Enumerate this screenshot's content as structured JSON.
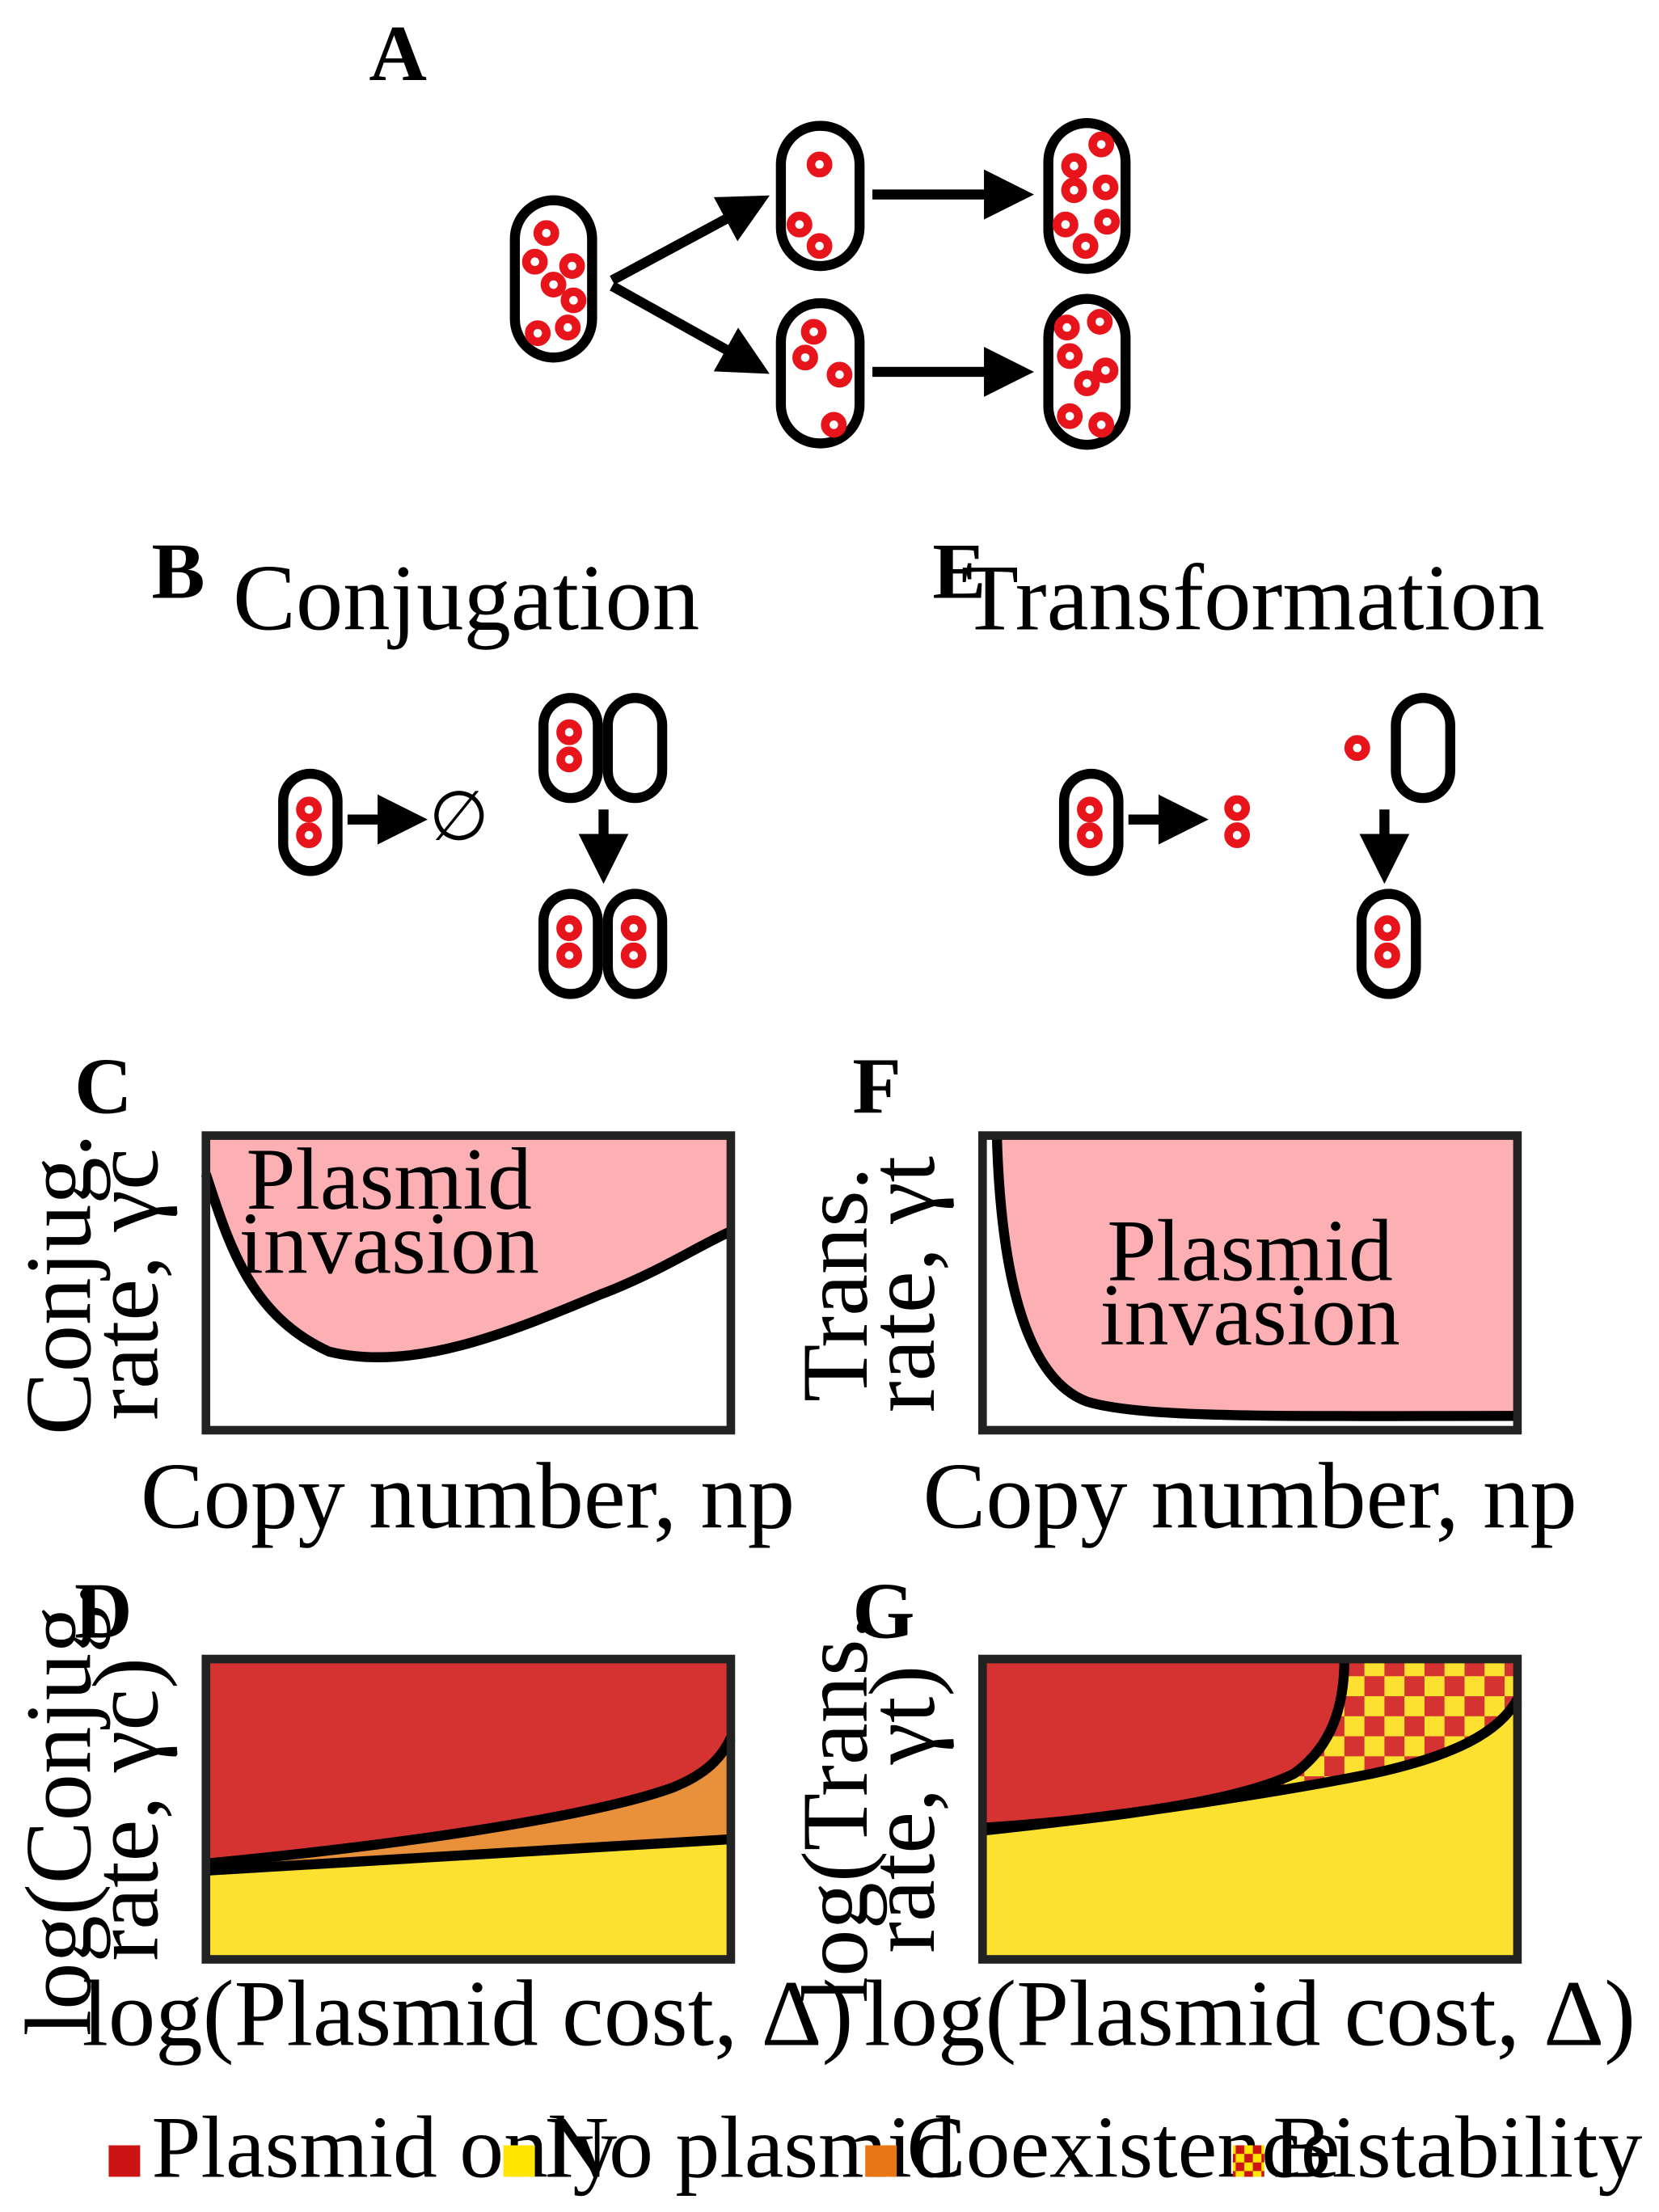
{
  "panels": {
    "A": {
      "letter": "A"
    },
    "B": {
      "letter": "B",
      "title": "Conjugation",
      "empty_set": "∅"
    },
    "E": {
      "letter": "E",
      "title": "Transformation"
    },
    "C": {
      "letter": "C",
      "ylabel_line1": "Conjug.",
      "ylabel_line2": "rate, γc",
      "xlabel": "Copy number, np",
      "region_line1": "Plasmid",
      "region_line2": "invasion"
    },
    "F": {
      "letter": "F",
      "ylabel_line1": "Trans.",
      "ylabel_line2": "rate, γt",
      "xlabel": "Copy number, np",
      "region_line1": "Plasmid",
      "region_line2": "invasion"
    },
    "D": {
      "letter": "D",
      "ylabel_line1": "log(Conjug.",
      "ylabel_line2": "rate, γc)",
      "xlabel": "log(Plasmid cost, Δ)"
    },
    "G": {
      "letter": "G",
      "ylabel_line1": "log(Trans.",
      "ylabel_line2": "rate, γt)",
      "xlabel": "log(Plasmid cost, Δ)"
    }
  },
  "colors": {
    "plasmid_only": "#d53332",
    "no_plasmid": "#fde130",
    "coexistence": "#e8913a",
    "invasion": "#fdb0b4",
    "plasmid_ring": "#e8141c"
  },
  "legend": {
    "items": [
      {
        "label": "Plasmid only",
        "color": "#cc1414"
      },
      {
        "label": "No plasmid",
        "color": "#ffe600"
      },
      {
        "label": "Coexistence",
        "color": "#e87612"
      },
      {
        "label": "Bistability",
        "color": "checker"
      }
    ]
  }
}
